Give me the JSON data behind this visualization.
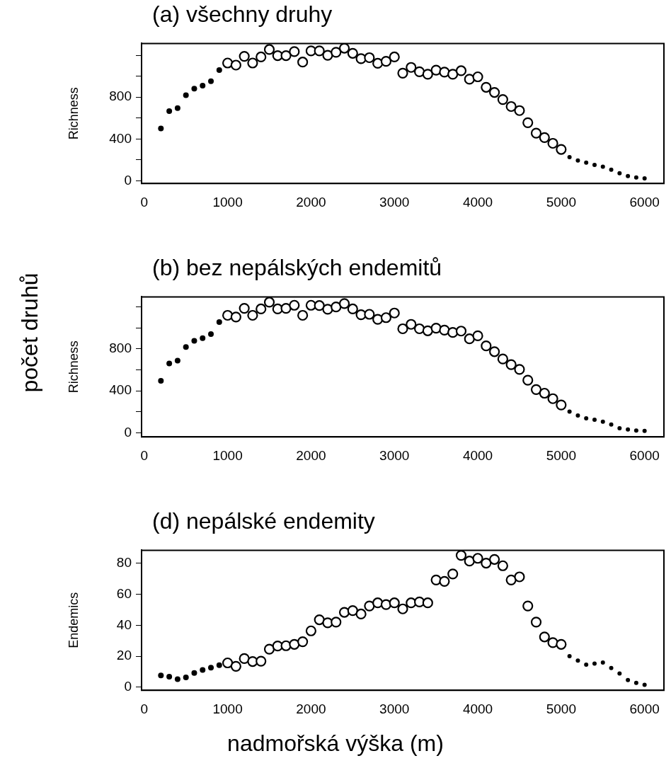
{
  "chart_data": [
    {
      "type": "scatter",
      "title": "(a)  všechny druhy",
      "ylabel": "Richness",
      "xlim": [
        -32,
        6232
      ],
      "xticks": [
        0,
        1000,
        2000,
        3000,
        4000,
        5000,
        6000
      ],
      "ylim": [
        -26,
        1313
      ],
      "yticks": [
        0,
        {
          "value": 200,
          "label": null
        },
        400,
        {
          "value": 600,
          "label": null
        },
        800,
        {
          "value": 1000,
          "label": null
        },
        {
          "value": 1200,
          "label": null
        }
      ],
      "grid": false,
      "marker": "circle",
      "series": [
        {
          "color": "#000000",
          "x": [
            200,
            300,
            400,
            500,
            600,
            700,
            800,
            900
          ],
          "values": [
            500,
            665,
            694,
            819,
            881,
            910,
            952,
            1058
          ]
        },
        {
          "color": "#000000",
          "x": [
            1000,
            1100,
            1200,
            1300,
            1400,
            1500,
            1600,
            1700,
            1800,
            1900,
            2000,
            2100,
            2200,
            2300,
            2400,
            2500,
            2600,
            2700,
            2800,
            2900,
            3000,
            3100,
            3200,
            3300,
            3400,
            3500,
            3600,
            3700,
            3800,
            3900,
            4000,
            4100,
            4200,
            4300,
            4400,
            4500,
            4600,
            4700,
            4800,
            4900,
            5000
          ],
          "values": [
            1126,
            1106,
            1190,
            1126,
            1184,
            1255,
            1197,
            1197,
            1235,
            1135,
            1242,
            1242,
            1200,
            1229,
            1268,
            1219,
            1168,
            1177,
            1123,
            1142,
            1184,
            1029,
            1084,
            1042,
            1019,
            1058,
            1039,
            1019,
            1052,
            971,
            994,
            894,
            845,
            777,
            710,
            671,
            555,
            455,
            413,
            358,
            300
          ]
        },
        {
          "color": "#000000",
          "x": [
            5100,
            5200,
            5300,
            5400,
            5500,
            5600,
            5700,
            5800,
            5900,
            6000
          ],
          "values": [
            226,
            194,
            174,
            152,
            135,
            106,
            71,
            45,
            32,
            23
          ]
        }
      ]
    },
    {
      "type": "scatter",
      "title": "(b)  bez nepálských endemitů",
      "ylabel": "Richness",
      "xlim": [
        -32,
        6232
      ],
      "xticks": [
        0,
        1000,
        2000,
        3000,
        4000,
        5000,
        6000
      ],
      "ylim": [
        -38,
        1296
      ],
      "yticks": [
        0,
        {
          "value": 200,
          "label": null
        },
        400,
        {
          "value": 600,
          "label": null
        },
        800,
        {
          "value": 1000,
          "label": null
        },
        {
          "value": 1200,
          "label": null
        }
      ],
      "grid": false,
      "marker": "circle",
      "annotations": [
        "počet druhů"
      ],
      "series": [
        {
          "color": "#000000",
          "x": [
            200,
            300,
            400,
            500,
            600,
            700,
            800,
            900
          ],
          "values": [
            496,
            662,
            688,
            819,
            877,
            902,
            941,
            1056
          ]
        },
        {
          "color": "#000000",
          "x": [
            1000,
            1100,
            1200,
            1300,
            1400,
            1500,
            1600,
            1700,
            1800,
            1900,
            2000,
            2100,
            2200,
            2300,
            2400,
            2500,
            2600,
            2700,
            2800,
            2900,
            3000,
            3100,
            3200,
            3300,
            3400,
            3500,
            3600,
            3700,
            3800,
            3900,
            4000,
            4100,
            4200,
            4300,
            4400,
            4500,
            4600,
            4700,
            4800,
            4900,
            5000
          ],
          "values": [
            1120,
            1104,
            1187,
            1120,
            1181,
            1245,
            1181,
            1187,
            1216,
            1120,
            1216,
            1213,
            1178,
            1200,
            1232,
            1181,
            1126,
            1130,
            1082,
            1098,
            1142,
            992,
            1034,
            992,
            973,
            998,
            979,
            957,
            970,
            896,
            925,
            829,
            774,
            704,
            650,
            605,
            502,
            413,
            378,
            326,
            266
          ]
        },
        {
          "color": "#000000",
          "x": [
            5100,
            5200,
            5300,
            5400,
            5500,
            5600,
            5700,
            5800,
            5900,
            6000
          ],
          "values": [
            202,
            166,
            138,
            125,
            106,
            80,
            45,
            32,
            22,
            19
          ]
        }
      ]
    },
    {
      "type": "scatter",
      "title": "(d)  nepálské endemity",
      "ylabel": "Endemics",
      "xlim": [
        -32,
        6232
      ],
      "xticks": [
        0,
        1000,
        2000,
        3000,
        4000,
        5000,
        6000
      ],
      "ylim": [
        -2,
        88.5
      ],
      "yticks": [
        0,
        20,
        40,
        60,
        80
      ],
      "grid": false,
      "marker": "circle",
      "annotations": [
        "nadmořská výška (m)"
      ],
      "series": [
        {
          "color": "#000000",
          "x": [
            200,
            300,
            400,
            500,
            600,
            700,
            800,
            900
          ],
          "values": [
            7.6,
            6.8,
            5.2,
            6.3,
            9.2,
            11.1,
            12.6,
            14.2
          ]
        },
        {
          "color": "#000000",
          "x": [
            1000,
            1100,
            1200,
            1300,
            1400,
            1500,
            1600,
            1700,
            1800,
            1900,
            2000,
            2100,
            2200,
            2300,
            2400,
            2500,
            2600,
            2700,
            2800,
            2900,
            3000,
            3100,
            3200,
            3300,
            3400,
            3500,
            3600,
            3700,
            3800,
            3900,
            4000,
            4100,
            4200,
            4300,
            4400,
            4500,
            4600,
            4700,
            4800,
            4900,
            5000
          ],
          "values": [
            15.7,
            13.5,
            18.5,
            16.6,
            16.8,
            24.6,
            26.6,
            26.8,
            27.7,
            29.4,
            36.4,
            43.6,
            41.6,
            42.1,
            48.4,
            49.5,
            47.3,
            52.5,
            54.5,
            53.4,
            54.5,
            50.6,
            54.5,
            55.1,
            54.5,
            69.3,
            68.4,
            73.2,
            85.2,
            81.5,
            83.3,
            80.2,
            82.6,
            78.5,
            69.3,
            71.3,
            52.5,
            42.1,
            32.5,
            28.8,
            27.7
          ]
        },
        {
          "color": "#000000",
          "x": [
            5100,
            5200,
            5300,
            5400,
            5500,
            5600,
            5700,
            5800,
            5900,
            6000
          ],
          "values": [
            20.1,
            17.2,
            14.6,
            15.3,
            15.9,
            12.4,
            8.9,
            4.6,
            2.8,
            1.5
          ]
        }
      ]
    }
  ]
}
